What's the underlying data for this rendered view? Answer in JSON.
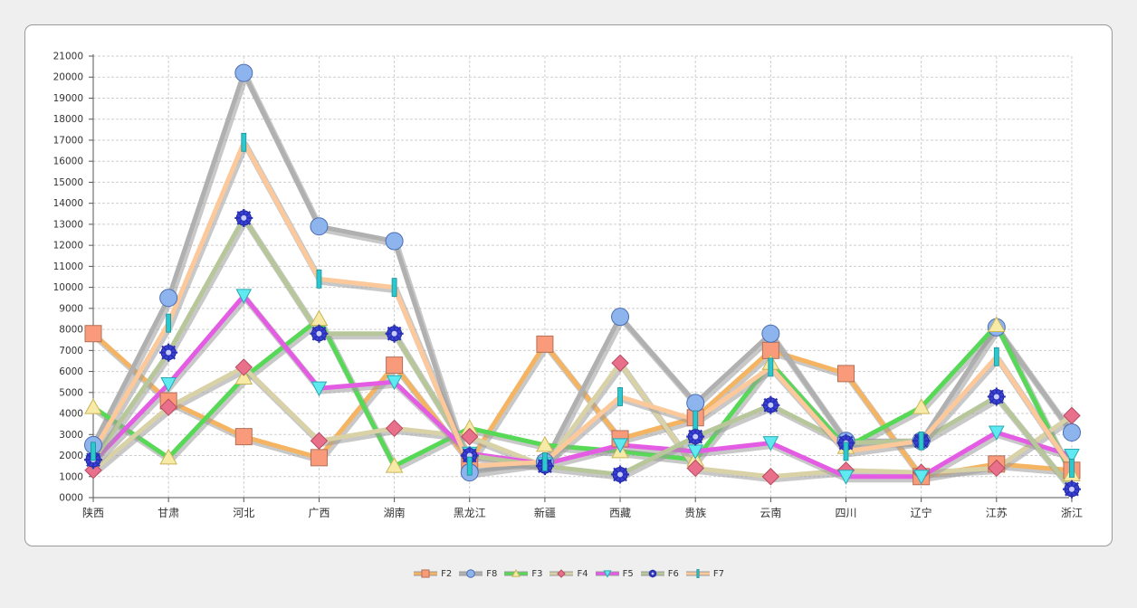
{
  "chart_data": {
    "type": "line",
    "categories": [
      "陕西",
      "甘肃",
      "河北",
      "广西",
      "湖南",
      "黑龙江",
      "新疆",
      "西藏",
      "贵族",
      "云南",
      "四川",
      "辽宁",
      "江苏",
      "浙江"
    ],
    "ylim": [
      0,
      21000
    ],
    "yticks": [
      "0000",
      "1000",
      "2000",
      "3000",
      "4000",
      "5000",
      "6000",
      "7000",
      "8000",
      "9000",
      "10000",
      "11000",
      "12000",
      "13000",
      "14000",
      "15000",
      "16000",
      "17000",
      "18000",
      "19000",
      "20000",
      "21000"
    ],
    "grid": true,
    "legend_position": "bottom-center",
    "series": [
      {
        "name": "F2",
        "color": "#f5b461",
        "marker": "square",
        "marker_color": "#f99b7a",
        "values": [
          7800,
          4600,
          2900,
          1900,
          6300,
          1700,
          7300,
          2800,
          3800,
          7000,
          5900,
          1000,
          1600,
          1300
        ]
      },
      {
        "name": "F8",
        "color": "#b0b0b0",
        "marker": "circle",
        "marker_color": "#8eb4ee",
        "values": [
          2500,
          9500,
          20200,
          12900,
          12200,
          1200,
          1700,
          8600,
          4500,
          7800,
          2700,
          2700,
          8100,
          3100
        ]
      },
      {
        "name": "F3",
        "color": "#57d957",
        "marker": "triangle",
        "marker_color": "#f7e9a6",
        "values": [
          4300,
          1900,
          5700,
          8500,
          1500,
          3300,
          2500,
          2200,
          1800,
          6400,
          2400,
          4300,
          8200,
          1100
        ]
      },
      {
        "name": "F4",
        "color": "#d8d2a6",
        "marker": "diamond",
        "marker_color": "#e8708a",
        "values": [
          1300,
          4300,
          6200,
          2700,
          3300,
          2900,
          1500,
          6400,
          1400,
          1000,
          1300,
          1200,
          1400,
          3900
        ]
      },
      {
        "name": "F5",
        "color": "#e35ce3",
        "marker": "triangle-down",
        "marker_color": "#5eeaf0",
        "values": [
          1700,
          5400,
          9600,
          5200,
          5500,
          2100,
          1600,
          2500,
          2200,
          2600,
          1000,
          1000,
          3100,
          2000
        ]
      },
      {
        "name": "F6",
        "color": "#b7c79a",
        "marker": "asterisk",
        "marker_color": "#3b43d8",
        "values": [
          1800,
          6900,
          13300,
          7800,
          7800,
          2000,
          1500,
          1100,
          2900,
          4400,
          2600,
          2700,
          4800,
          400
        ]
      },
      {
        "name": "F7",
        "color": "#fdc99b",
        "marker": "bar",
        "marker_color": "#2bc8cf",
        "values": [
          2200,
          8300,
          16900,
          10400,
          10000,
          1500,
          1700,
          4800,
          3700,
          6200,
          2200,
          2700,
          6700,
          1400
        ]
      }
    ]
  }
}
